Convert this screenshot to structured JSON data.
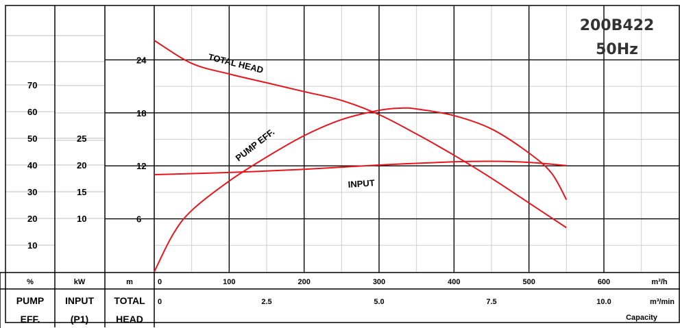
{
  "chart_data": {
    "type": "line",
    "model": "200B422",
    "frequency": "50Hz",
    "x_unit_primary": "m³/h",
    "x_unit_secondary": "m³/min",
    "x_title": "Capacity",
    "x_ticks_primary": [
      "0",
      "100",
      "200",
      "300",
      "400",
      "500",
      "600"
    ],
    "x_ticks_secondary": [
      "0",
      "2.5",
      "5.0",
      "7.5",
      "10.0"
    ],
    "xlim": [
      0,
      700
    ],
    "axes": {
      "eff": {
        "unit": "%",
        "label_line1": "PUMP",
        "label_line2": "EFF.",
        "ticks": [
          "10",
          "20",
          "30",
          "40",
          "50",
          "60",
          "70"
        ]
      },
      "input": {
        "unit": "kW",
        "label_line1": "INPUT",
        "label_line2": "(P1)",
        "ticks": [
          "10",
          "15",
          "20",
          "25"
        ]
      },
      "head": {
        "unit": "m",
        "label_line1": "TOTAL",
        "label_line2": "HEAD",
        "ticks": [
          "6",
          "12",
          "18",
          "24"
        ],
        "ylim": [
          0,
          27
        ]
      }
    },
    "series": [
      {
        "name": "TOTAL HEAD",
        "axis": "head",
        "color": "#e8141c",
        "x": [
          0,
          50,
          100,
          150,
          200,
          250,
          300,
          350,
          400,
          450,
          500,
          550
        ],
        "y": [
          26.2,
          23.6,
          22.4,
          21.4,
          20.4,
          19.4,
          17.8,
          15.6,
          13.2,
          10.6,
          7.8,
          5.0
        ]
      },
      {
        "name": "PUMP EFF.",
        "axis": "eff",
        "color": "#e8141c",
        "x": [
          0,
          25,
          50,
          100,
          150,
          200,
          250,
          300,
          330,
          350,
          400,
          450,
          500,
          530,
          550
        ],
        "y": [
          0,
          14,
          23,
          34,
          43,
          51,
          57,
          60.5,
          61.3,
          61.0,
          58.5,
          53.5,
          44.5,
          37,
          27
        ]
      },
      {
        "name": "INPUT",
        "axis": "input",
        "color": "#e8141c",
        "x": [
          0,
          100,
          200,
          300,
          400,
          450,
          500,
          550
        ],
        "y": [
          18.2,
          18.6,
          19.2,
          20.0,
          20.6,
          20.7,
          20.5,
          19.9
        ]
      }
    ]
  }
}
